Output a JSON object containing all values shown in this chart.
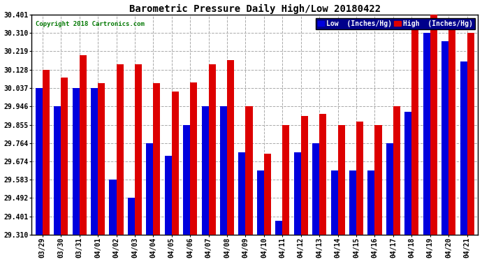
{
  "title": "Barometric Pressure Daily High/Low 20180422",
  "copyright": "Copyright 2018 Cartronics.com",
  "dates": [
    "03/29",
    "03/30",
    "03/31",
    "04/01",
    "04/02",
    "04/03",
    "04/04",
    "04/05",
    "04/06",
    "04/07",
    "04/08",
    "04/09",
    "04/10",
    "04/11",
    "04/12",
    "04/13",
    "04/14",
    "04/15",
    "04/16",
    "04/17",
    "04/18",
    "04/19",
    "04/20",
    "04/21"
  ],
  "low": [
    30.037,
    29.946,
    30.037,
    30.037,
    29.583,
    29.492,
    29.764,
    29.7,
    29.855,
    29.946,
    29.946,
    29.72,
    29.63,
    29.38,
    29.72,
    29.764,
    29.63,
    29.63,
    29.63,
    29.764,
    29.92,
    30.31,
    30.27,
    30.17
  ],
  "high": [
    30.128,
    30.09,
    30.2,
    30.06,
    30.155,
    30.155,
    30.06,
    30.02,
    30.065,
    30.155,
    30.175,
    29.946,
    29.71,
    29.855,
    29.9,
    29.91,
    29.855,
    29.87,
    29.855,
    29.946,
    30.365,
    30.401,
    30.383,
    30.31
  ],
  "ymin": 29.31,
  "ymax": 30.401,
  "yticks": [
    29.31,
    29.401,
    29.492,
    29.583,
    29.674,
    29.764,
    29.855,
    29.946,
    30.037,
    30.128,
    30.219,
    30.31,
    30.401
  ],
  "bar_width": 0.38,
  "low_color": "#0000dd",
  "high_color": "#dd0000",
  "bg_color": "#ffffff",
  "grid_color": "#aaaaaa",
  "legend_low_label": "Low  (Inches/Hg)",
  "legend_high_label": "High  (Inches/Hg)",
  "legend_bg": "#00008B",
  "copyright_color": "#007700",
  "title_fontsize": 10,
  "tick_fontsize": 7,
  "figwidth": 6.9,
  "figheight": 3.75,
  "dpi": 100
}
